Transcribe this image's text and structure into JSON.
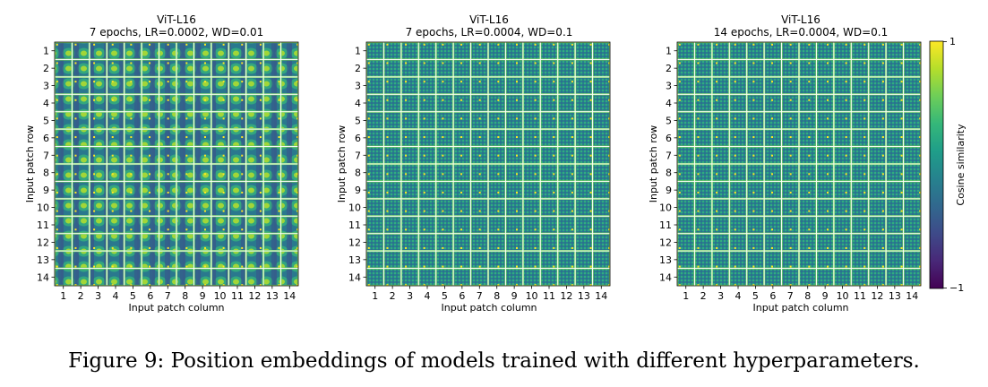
{
  "figure": {
    "caption": "Figure 9: Position embeddings of models trained with different hyperparameters."
  },
  "chart_data": [
    {
      "type": "heatmap",
      "title": "ViT-L16",
      "subtitle": "7 epochs, LR=0.0002, WD=0.01",
      "xlabel": "Input patch column",
      "ylabel": "Input patch row",
      "grid_rows": 14,
      "grid_cols": 14,
      "row_tick_labels": [
        "1",
        "2",
        "3",
        "4",
        "5",
        "6",
        "7",
        "8",
        "9",
        "10",
        "11",
        "12",
        "13",
        "14"
      ],
      "col_tick_labels": [
        "1",
        "2",
        "3",
        "4",
        "5",
        "6",
        "7",
        "8",
        "9",
        "10",
        "11",
        "12",
        "13",
        "14"
      ],
      "pattern": "smooth"
    },
    {
      "type": "heatmap",
      "title": "ViT-L16",
      "subtitle": "7 epochs, LR=0.0004, WD=0.1",
      "xlabel": "Input patch column",
      "ylabel": "Input patch row",
      "grid_rows": 14,
      "grid_cols": 14,
      "row_tick_labels": [
        "1",
        "2",
        "3",
        "4",
        "5",
        "6",
        "7",
        "8",
        "9",
        "10",
        "11",
        "12",
        "13",
        "14"
      ],
      "col_tick_labels": [
        "1",
        "2",
        "3",
        "4",
        "5",
        "6",
        "7",
        "8",
        "9",
        "10",
        "11",
        "12",
        "13",
        "14"
      ],
      "pattern": "fine"
    },
    {
      "type": "heatmap",
      "title": "ViT-L16",
      "subtitle": "14 epochs, LR=0.0004, WD=0.1",
      "xlabel": "Input patch column",
      "ylabel": "Input patch row",
      "grid_rows": 14,
      "grid_cols": 14,
      "row_tick_labels": [
        "1",
        "2",
        "3",
        "4",
        "5",
        "6",
        "7",
        "8",
        "9",
        "10",
        "11",
        "12",
        "13",
        "14"
      ],
      "col_tick_labels": [
        "1",
        "2",
        "3",
        "4",
        "5",
        "6",
        "7",
        "8",
        "9",
        "10",
        "11",
        "12",
        "13",
        "14"
      ],
      "pattern": "fine"
    }
  ],
  "colorbar": {
    "label": "Cosine similarity",
    "min_label": "−1",
    "max_label": "1",
    "min": -1,
    "max": 1,
    "colormap": "viridis",
    "colors": [
      "#440154",
      "#482878",
      "#3e4a89",
      "#31688e",
      "#26828e",
      "#1f9e89",
      "#35b779",
      "#6ece58",
      "#b5de2b",
      "#fde725"
    ]
  }
}
